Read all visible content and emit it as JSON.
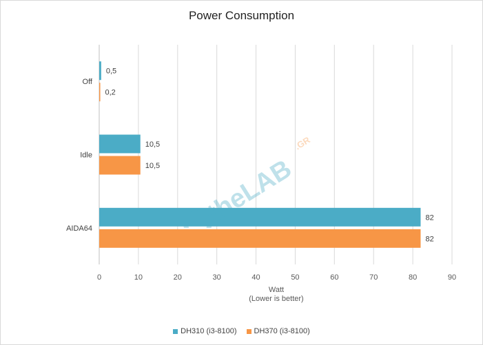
{
  "chart_data": {
    "type": "bar",
    "orientation": "horizontal",
    "title": "Power Consumption",
    "xlabel": "Watt",
    "xlabel_note": "(Lower is better)",
    "ylabel": "",
    "categories": [
      "Off",
      "Idle",
      "AIDA64"
    ],
    "series": [
      {
        "name": "DH310 (i3-8100)",
        "color": "#4bacc6",
        "values": [
          0.5,
          10.5,
          82
        ],
        "labels": [
          "0,5",
          "10,5",
          "82"
        ]
      },
      {
        "name": "DH370 (i3-8100)",
        "color": "#f79646",
        "values": [
          0.2,
          10.5,
          82
        ],
        "labels": [
          "0,2",
          "10,5",
          "82"
        ]
      }
    ],
    "xlim": [
      0,
      90
    ],
    "xticks": [
      0,
      10,
      20,
      30,
      40,
      50,
      60,
      70,
      80,
      90
    ],
    "grid": true,
    "legend_position": "bottom"
  },
  "watermark": {
    "text": "theLAB",
    "suffix": ".GR"
  }
}
